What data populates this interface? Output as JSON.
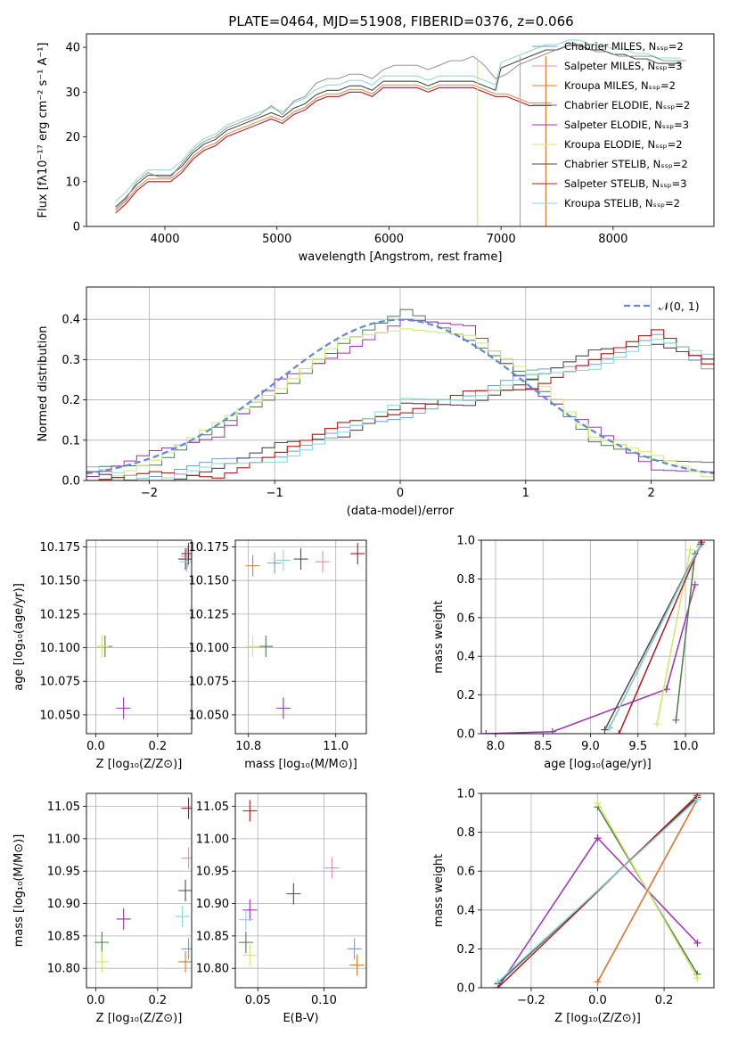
{
  "figure": {
    "title": "PLATE=0464, MJD=51908, FIBERID=0376, z=0.066"
  },
  "colors": {
    "Chabrier MILES": "#6f9fd8",
    "Salpeter MILES": "#e98bbd",
    "Kroupa MILES": "#e07b2a",
    "Chabrier ELODIE": "#4f7a4f",
    "Salpeter ELODIE": "#9b32b4",
    "Kroupa ELODIE": "#cfe86a",
    "Chabrier STELIB": "#4a4a4a",
    "Salpeter STELIB": "#b01919",
    "Kroupa STELIB": "#86d8d8",
    "Normal": "#5b8bd9"
  },
  "chart_data": [
    {
      "id": "spectrum",
      "type": "line",
      "xlabel": "wavelength [Angstrom, rest frame]",
      "ylabel": "Flux [fλ10⁻¹⁷ erg cm⁻² s⁻¹ A⁻¹]",
      "xlim": [
        3300,
        8900
      ],
      "ylim": [
        0,
        43
      ],
      "xticks": [
        "4000",
        "5000",
        "6000",
        "7000",
        "8000"
      ],
      "yticks": [
        "0",
        "10",
        "20",
        "30",
        "40"
      ],
      "grid": false,
      "legend_position": "right",
      "legend": [
        {
          "name": "Chabrier MILES",
          "label": "Chabrier MILES, Nₛₛₚ=2"
        },
        {
          "name": "Salpeter MILES",
          "label": "Salpeter MILES, Nₛₛₚ=3"
        },
        {
          "name": "Kroupa MILES",
          "label": "Kroupa MILES, Nₛₛₚ=2"
        },
        {
          "name": "Chabrier ELODIE",
          "label": "Chabrier ELODIE, Nₛₛₚ=2"
        },
        {
          "name": "Salpeter ELODIE",
          "label": "Salpeter ELODIE, Nₛₛₚ=3"
        },
        {
          "name": "Kroupa ELODIE",
          "label": "Kroupa ELODIE, Nₛₛₚ=2"
        },
        {
          "name": "Chabrier STELIB",
          "label": "Chabrier STELIB, Nₛₛₚ=2"
        },
        {
          "name": "Salpeter STELIB",
          "label": "Salpeter STELIB, Nₛₛₚ=3"
        },
        {
          "name": "Kroupa STELIB",
          "label": "Kroupa STELIB, Nₛₛₚ=2"
        }
      ],
      "observed": {
        "x": [
          3560,
          3650,
          3750,
          3850,
          3950,
          4050,
          4150,
          4250,
          4350,
          4450,
          4550,
          4650,
          4750,
          4850,
          4950,
          5050,
          5150,
          5250,
          5350,
          5450,
          5550,
          5650,
          5750,
          5850,
          5950,
          6050,
          6150,
          6250,
          6350,
          6450,
          6550,
          6650,
          6750,
          6850,
          6950,
          7050,
          7150,
          7250,
          7350,
          7450,
          7550,
          7650,
          7750,
          7850,
          7950,
          8050,
          8150,
          8250,
          8350,
          8450,
          8550,
          8650
        ],
        "y": [
          4,
          6,
          10,
          12,
          11,
          11,
          14,
          17,
          19,
          20,
          22,
          23,
          24,
          25,
          27,
          25,
          28,
          29,
          32,
          33,
          33,
          34,
          34,
          33,
          35,
          36,
          36,
          36,
          35,
          36,
          37,
          37,
          38,
          36,
          33,
          34,
          36,
          37,
          38,
          39,
          40,
          41,
          40,
          39,
          39,
          38,
          38,
          38,
          38,
          37,
          37,
          37
        ]
      },
      "model_upper": {
        "x": [
          7000,
          7100,
          7200,
          7300,
          7400,
          7500,
          7600,
          7700,
          7800,
          7900,
          8000,
          8100,
          8200,
          8300,
          8400,
          8500,
          8600
        ],
        "y": [
          36,
          37,
          38,
          39,
          40,
          40,
          41,
          41,
          40,
          40,
          39,
          39,
          38,
          38,
          37,
          37,
          37
        ]
      },
      "model_lower": {
        "x": [
          3560,
          3650,
          3750,
          3850,
          3950,
          4050,
          4150,
          4250,
          4350,
          4450,
          4550,
          4650,
          4750,
          4850,
          4950,
          5050,
          5150,
          5250,
          5350,
          5450,
          5550,
          5650,
          5750,
          5850,
          5950,
          6050,
          6150,
          6250,
          6350,
          6450,
          6550,
          6650,
          6750,
          6850,
          6950,
          7050,
          7150,
          7250,
          7350,
          7450
        ],
        "y": [
          3,
          5,
          8,
          10,
          10,
          10,
          12,
          15,
          17,
          18,
          20,
          21,
          22,
          23,
          24,
          23,
          25,
          26,
          28,
          29,
          29,
          30,
          30,
          29,
          31,
          31,
          31,
          31,
          30,
          31,
          31,
          31,
          31,
          30,
          29,
          29,
          28,
          27,
          27,
          27
        ]
      }
    },
    {
      "id": "residuals",
      "type": "line",
      "xlabel": "(data-model)/error",
      "ylabel": "Normed distribution",
      "xlim": [
        -2.5,
        2.5
      ],
      "ylim": [
        0,
        0.48
      ],
      "xticks": [
        "−2",
        "−1",
        "0",
        "1",
        "2"
      ],
      "yticks": [
        "0.0",
        "0.1",
        "0.2",
        "0.3",
        "0.4"
      ],
      "grid": true,
      "legend_position": "top-right",
      "legend": [
        {
          "name": "Normal",
          "label": "𝒩(0, 1)"
        }
      ],
      "centered": {
        "x": [
          -2.5,
          -2.0,
          -1.5,
          -1.0,
          -0.5,
          0.0,
          0.5,
          1.0,
          1.5,
          2.0,
          2.5
        ],
        "y": [
          0.01,
          0.05,
          0.12,
          0.24,
          0.34,
          0.4,
          0.36,
          0.24,
          0.12,
          0.05,
          0.02
        ]
      },
      "shifted": {
        "x": [
          -2.5,
          -2.0,
          -1.5,
          -1.0,
          -0.5,
          0.0,
          0.5,
          1.0,
          1.5,
          2.0,
          2.5
        ],
        "y": [
          0.01,
          0.01,
          0.03,
          0.07,
          0.12,
          0.18,
          0.21,
          0.25,
          0.3,
          0.35,
          0.28
        ]
      }
    },
    {
      "id": "age_vs_Z",
      "type": "scatter",
      "xlabel": "Z [log₁₀(Z/Z⊙)]",
      "ylabel": "age  [log₁₀(age/yr)]",
      "xlim": [
        -0.03,
        0.31
      ],
      "ylim": [
        10.036,
        10.18
      ],
      "xticks": [
        "0.0",
        "0.2"
      ],
      "yticks": [
        "10.050",
        "10.075",
        "10.100",
        "10.125",
        "10.150",
        "10.175"
      ],
      "grid": true,
      "points": [
        {
          "series": "Chabrier MILES",
          "x": 0.295,
          "y": 10.166
        },
        {
          "series": "Salpeter MILES",
          "x": 0.298,
          "y": 10.168
        },
        {
          "series": "Kroupa MILES",
          "x": 0.29,
          "y": 10.166
        },
        {
          "series": "Chabrier ELODIE",
          "x": 0.03,
          "y": 10.101
        },
        {
          "series": "Salpeter ELODIE",
          "x": 0.09,
          "y": 10.055
        },
        {
          "series": "Kroupa ELODIE",
          "x": 0.02,
          "y": 10.101
        },
        {
          "series": "Chabrier STELIB",
          "x": 0.29,
          "y": 10.166
        },
        {
          "series": "Salpeter STELIB",
          "x": 0.3,
          "y": 10.17
        },
        {
          "series": "Kroupa STELIB",
          "x": 0.295,
          "y": 10.164
        }
      ]
    },
    {
      "id": "age_vs_mass",
      "type": "scatter",
      "xlabel": "mass [log₁₀(M/M⊙)]",
      "ylabel": "",
      "xlim": [
        10.77,
        11.07
      ],
      "ylim": [
        10.036,
        10.18
      ],
      "xticks": [
        "10.8",
        "11.0"
      ],
      "yticks": [
        "10.050",
        "10.075",
        "10.100",
        "10.125",
        "10.150",
        "10.175"
      ],
      "grid": true,
      "points": [
        {
          "series": "Chabrier MILES",
          "x": 10.86,
          "y": 10.163
        },
        {
          "series": "Salpeter MILES",
          "x": 10.97,
          "y": 10.164
        },
        {
          "series": "Kroupa MILES",
          "x": 10.81,
          "y": 10.161
        },
        {
          "series": "Chabrier ELODIE",
          "x": 10.84,
          "y": 10.101
        },
        {
          "series": "Salpeter ELODIE",
          "x": 10.88,
          "y": 10.055
        },
        {
          "series": "Kroupa ELODIE",
          "x": 10.81,
          "y": 10.101
        },
        {
          "series": "Chabrier STELIB",
          "x": 10.92,
          "y": 10.166
        },
        {
          "series": "Salpeter STELIB",
          "x": 11.05,
          "y": 10.17
        },
        {
          "series": "Kroupa STELIB",
          "x": 10.88,
          "y": 10.165
        }
      ]
    },
    {
      "id": "cumulative_age",
      "type": "line",
      "xlabel": "age  [log₁₀(age/yr)]",
      "ylabel": "mass weight",
      "xlim": [
        7.85,
        10.3
      ],
      "ylim": [
        0,
        1
      ],
      "xticks": [
        "8.0",
        "8.5",
        "9.0",
        "9.5",
        "10.0"
      ],
      "yticks": [
        "0.0",
        "0.2",
        "0.4",
        "0.6",
        "0.8",
        "1.0"
      ],
      "grid": true,
      "series": [
        {
          "name": "Salpeter ELODIE",
          "x": [
            7.9,
            8.6,
            9.8,
            10.1
          ],
          "y": [
            0.0,
            0.01,
            0.23,
            0.77
          ]
        },
        {
          "name": "Chabrier MILES",
          "x": [
            9.2,
            10.15
          ],
          "y": [
            0.03,
            0.97
          ]
        },
        {
          "name": "Salpeter MILES",
          "x": [
            9.2,
            10.15
          ],
          "y": [
            0.03,
            0.97
          ]
        },
        {
          "name": "Kroupa MILES",
          "x": [
            9.2,
            10.15
          ],
          "y": [
            0.03,
            0.97
          ]
        },
        {
          "name": "Chabrier ELODIE",
          "x": [
            9.9,
            10.1
          ],
          "y": [
            0.07,
            0.93
          ]
        },
        {
          "name": "Kroupa ELODIE",
          "x": [
            9.7,
            10.05
          ],
          "y": [
            0.05,
            0.95
          ]
        },
        {
          "name": "Chabrier STELIB",
          "x": [
            9.15,
            10.16
          ],
          "y": [
            0.02,
            0.98
          ]
        },
        {
          "name": "Salpeter STELIB",
          "x": [
            9.3,
            10.17
          ],
          "y": [
            0.0,
            0.99
          ]
        },
        {
          "name": "Kroupa STELIB",
          "x": [
            9.2,
            10.15
          ],
          "y": [
            0.03,
            0.97
          ]
        }
      ]
    },
    {
      "id": "mass_vs_Z",
      "type": "scatter",
      "xlabel": "Z [log₁₀(Z/Z⊙)]",
      "ylabel": "mass [log₁₀(M/M⊙)]",
      "xlim": [
        -0.03,
        0.31
      ],
      "ylim": [
        10.77,
        11.07
      ],
      "xticks": [
        "0.0",
        "0.2"
      ],
      "yticks": [
        "10.80",
        "10.85",
        "10.90",
        "10.95",
        "11.00",
        "11.05"
      ],
      "grid": true,
      "points": [
        {
          "series": "Chabrier MILES",
          "x": 0.3,
          "y": 10.83
        },
        {
          "series": "Salpeter MILES",
          "x": 0.3,
          "y": 10.97
        },
        {
          "series": "Kroupa MILES",
          "x": 0.29,
          "y": 10.81
        },
        {
          "series": "Chabrier ELODIE",
          "x": 0.02,
          "y": 10.84
        },
        {
          "series": "Salpeter ELODIE",
          "x": 0.09,
          "y": 10.876
        },
        {
          "series": "Kroupa ELODIE",
          "x": 0.02,
          "y": 10.81
        },
        {
          "series": "Chabrier STELIB",
          "x": 0.29,
          "y": 10.92
        },
        {
          "series": "Salpeter STELIB",
          "x": 0.3,
          "y": 11.047
        },
        {
          "series": "Kroupa STELIB",
          "x": 0.28,
          "y": 10.88
        }
      ]
    },
    {
      "id": "mass_vs_EBV",
      "type": "scatter",
      "xlabel": "E(B-V)",
      "ylabel": "",
      "xlim": [
        0.033,
        0.132
      ],
      "ylim": [
        10.77,
        11.07
      ],
      "xticks": [
        "0.05",
        "0.10"
      ],
      "yticks": [
        "10.80",
        "10.85",
        "10.90",
        "10.95",
        "11.00",
        "11.05"
      ],
      "grid": true,
      "points": [
        {
          "series": "Chabrier MILES",
          "x": 0.123,
          "y": 10.83
        },
        {
          "series": "Salpeter MILES",
          "x": 0.106,
          "y": 10.955
        },
        {
          "series": "Kroupa MILES",
          "x": 0.125,
          "y": 10.805
        },
        {
          "series": "Chabrier ELODIE",
          "x": 0.041,
          "y": 10.84
        },
        {
          "series": "Salpeter ELODIE",
          "x": 0.044,
          "y": 10.89
        },
        {
          "series": "Kroupa ELODIE",
          "x": 0.044,
          "y": 10.82
        },
        {
          "series": "Chabrier STELIB",
          "x": 0.077,
          "y": 10.915
        },
        {
          "series": "Salpeter STELIB",
          "x": 0.044,
          "y": 11.043
        },
        {
          "series": "Kroupa STELIB",
          "x": 0.041,
          "y": 10.875
        }
      ]
    },
    {
      "id": "cumulative_Z",
      "type": "line",
      "xlabel": "Z [log₁₀(Z/Z⊙)]",
      "ylabel": "mass weight",
      "xlim": [
        -0.35,
        0.35
      ],
      "ylim": [
        0,
        1
      ],
      "xticks": [
        "−0.2",
        "0.0",
        "0.2"
      ],
      "yticks": [
        "0.0",
        "0.2",
        "0.4",
        "0.6",
        "0.8",
        "1.0"
      ],
      "grid": true,
      "series": [
        {
          "name": "Salpeter ELODIE",
          "x": [
            0.0,
            0.3
          ],
          "y": [
            0.77,
            0.23
          ]
        },
        {
          "name": "Salpeter ELODIE",
          "x": [
            -0.3,
            0.0
          ],
          "y": [
            0.0,
            0.77
          ]
        },
        {
          "name": "Chabrier ELODIE",
          "x": [
            0.0,
            0.3
          ],
          "y": [
            0.93,
            0.07
          ]
        },
        {
          "name": "Kroupa ELODIE",
          "x": [
            0.0,
            0.3
          ],
          "y": [
            0.95,
            0.05
          ]
        },
        {
          "name": "Chabrier MILES",
          "x": [
            0.0,
            0.3
          ],
          "y": [
            0.03,
            0.97
          ]
        },
        {
          "name": "Salpeter MILES",
          "x": [
            0.0,
            0.3
          ],
          "y": [
            0.03,
            0.97
          ]
        },
        {
          "name": "Kroupa MILES",
          "x": [
            0.0,
            0.3
          ],
          "y": [
            0.03,
            0.97
          ]
        },
        {
          "name": "Chabrier STELIB",
          "x": [
            -0.3,
            0.3
          ],
          "y": [
            0.02,
            0.98
          ]
        },
        {
          "name": "Salpeter STELIB",
          "x": [
            -0.3,
            0.3
          ],
          "y": [
            0.0,
            0.99
          ]
        },
        {
          "name": "Kroupa STELIB",
          "x": [
            -0.3,
            0.3
          ],
          "y": [
            0.03,
            0.97
          ]
        }
      ]
    }
  ]
}
